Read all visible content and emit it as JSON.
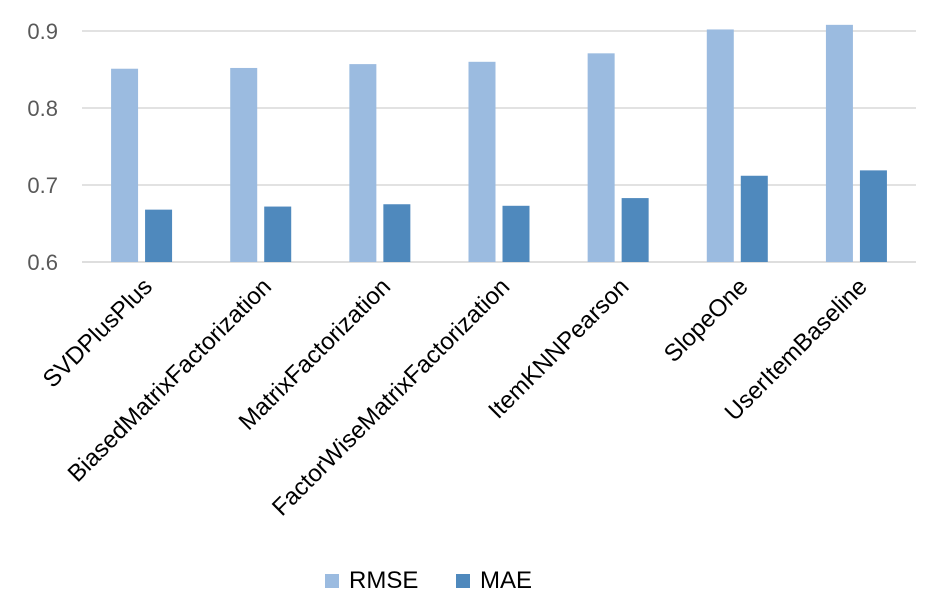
{
  "chart_data": {
    "type": "bar",
    "categories": [
      "SVDPlusPlus",
      "BiasedMatrixFactorization",
      "MatrixFactorization",
      "FactorWiseMatrixFactorization",
      "ItemKNNPearson",
      "SlopeOne",
      "UserItemBaseline"
    ],
    "series": [
      {
        "name": "RMSE",
        "color": "#9BBBE0",
        "values": [
          0.851,
          0.852,
          0.857,
          0.86,
          0.871,
          0.902,
          0.908
        ]
      },
      {
        "name": "MAE",
        "color": "#4F89BD",
        "values": [
          0.668,
          0.672,
          0.675,
          0.673,
          0.683,
          0.712,
          0.719
        ]
      }
    ],
    "yticks": [
      "0.6",
      "0.7",
      "0.8",
      "0.9"
    ],
    "ylim": [
      0.6,
      0.9
    ],
    "grid": true,
    "legend_position": "bottom",
    "title": "",
    "xlabel": "",
    "ylabel": ""
  }
}
